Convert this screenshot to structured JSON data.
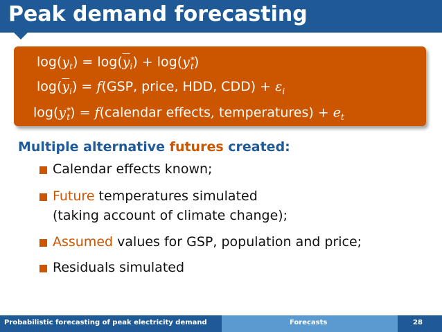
{
  "title": "Peak demand forecasting",
  "equations": {
    "eq1": {
      "lhs_fn": "log",
      "lhs_var": "y",
      "lhs_sub": "t",
      "eq": "=",
      "r1_fn": "log",
      "r1_var": "y",
      "r1_sub": "i",
      "plus": "+",
      "r2_fn": "log",
      "r2_var": "y",
      "r2_sup": "∗",
      "r2_sub": "t"
    },
    "eq2": {
      "lhs_fn": "log",
      "lhs_var": "y",
      "lhs_sub": "i",
      "eq": "=",
      "f": "f",
      "args": "GSP, price, HDD, CDD",
      "plus": "+",
      "err": "ε",
      "err_sub": "i"
    },
    "eq3": {
      "lhs_fn": "log",
      "lhs_var": "y",
      "lhs_sup": "∗",
      "lhs_sub": "t",
      "eq": "=",
      "f": "f",
      "args1": "calendar effects",
      "comma": ",",
      "args2": "temperatures",
      "plus": "+",
      "err": "e",
      "err_sub": "t"
    }
  },
  "heading": {
    "part1": "Multiple alternative ",
    "accent": "futures",
    "part2": " created:"
  },
  "bullets": [
    {
      "text": "Calendar effects known;"
    },
    {
      "accent": "Future",
      "text": " temperatures simulated",
      "line2": "(taking account of climate change);"
    },
    {
      "accent": "Assumed",
      "text": " values for GSP, population and price;"
    },
    {
      "text": "Residuals simulated"
    }
  ],
  "footer": {
    "left": "Probabilistic forecasting of peak electricity demand",
    "middle": "Forecasts",
    "page": "28"
  },
  "colors": {
    "blue": "#1f5a96",
    "orange": "#cc5500",
    "light_blue": "#5a9ad0"
  }
}
